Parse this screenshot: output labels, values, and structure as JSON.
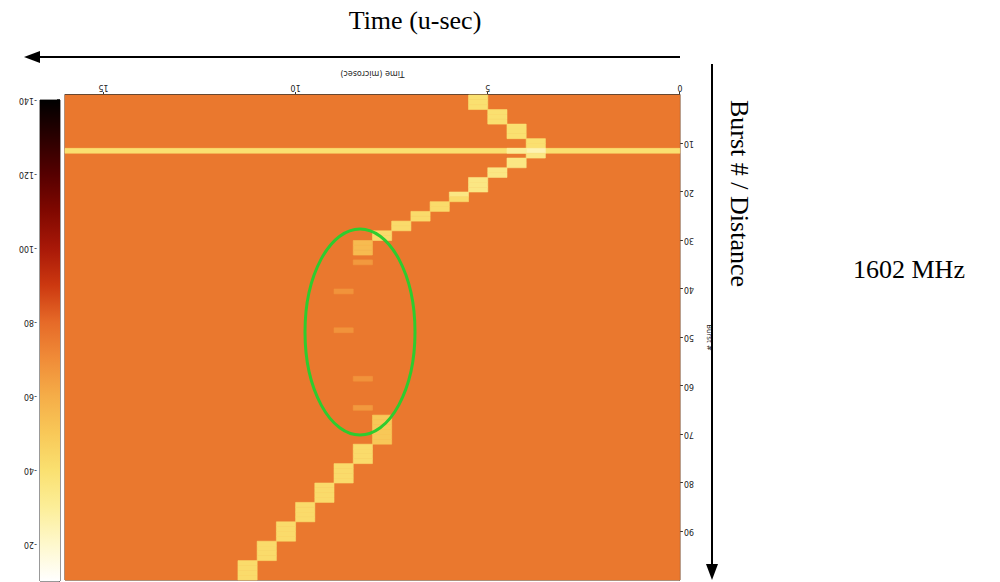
{
  "chart_data": {
    "type": "heatmap",
    "x_label": "Time (microsec)",
    "y_label": "Burst #",
    "xlim": [
      0,
      16
    ],
    "xticks": [
      0,
      5,
      10,
      15
    ],
    "ylim": [
      0,
      100
    ],
    "yticks": [
      10,
      20,
      30,
      40,
      50,
      60,
      70,
      80,
      90
    ],
    "colorbar": {
      "range": [
        -140,
        -10
      ],
      "ticks": [
        -140,
        -120,
        -100,
        -80,
        -60,
        -40,
        -20
      ]
    },
    "cell_size": {
      "x": 0.5,
      "y": 1
    },
    "background": -76,
    "bands": [
      {
        "y": 11,
        "value": -40
      }
    ],
    "cells": [
      [
        5.0,
        0,
        -40
      ],
      [
        5.0,
        1,
        -40
      ],
      [
        5.0,
        2,
        -40
      ],
      [
        4.5,
        3,
        -40
      ],
      [
        4.5,
        4,
        -40
      ],
      [
        4.5,
        5,
        -40
      ],
      [
        4.0,
        6,
        -40
      ],
      [
        4.0,
        7,
        -40
      ],
      [
        4.0,
        8,
        -40
      ],
      [
        3.5,
        9,
        -40
      ],
      [
        3.5,
        10,
        -40
      ],
      [
        3.5,
        11,
        -25
      ],
      [
        4.0,
        11,
        -30
      ],
      [
        3.5,
        12,
        -35
      ],
      [
        4.0,
        13,
        -35
      ],
      [
        4.0,
        14,
        -35
      ],
      [
        4.5,
        15,
        -35
      ],
      [
        4.5,
        16,
        -35
      ],
      [
        5.0,
        17,
        -35
      ],
      [
        5.0,
        18,
        -35
      ],
      [
        5.0,
        19,
        -35
      ],
      [
        5.5,
        20,
        -35
      ],
      [
        5.5,
        21,
        -42
      ],
      [
        6.0,
        22,
        -42
      ],
      [
        6.0,
        23,
        -42
      ],
      [
        6.5,
        24,
        -42
      ],
      [
        6.5,
        25,
        -42
      ],
      [
        7.0,
        26,
        -42
      ],
      [
        7.0,
        27,
        -42
      ],
      [
        7.5,
        28,
        -42
      ],
      [
        7.5,
        29,
        -42
      ],
      [
        8.0,
        30,
        -55
      ],
      [
        8.0,
        31,
        -55
      ],
      [
        8.0,
        32,
        -55
      ],
      [
        8.0,
        34,
        -66
      ],
      [
        8.5,
        40,
        -68
      ],
      [
        8.5,
        48,
        -68
      ],
      [
        8.0,
        58,
        -68
      ],
      [
        8.0,
        64,
        -66
      ],
      [
        7.5,
        66,
        -50
      ],
      [
        7.5,
        67,
        -50
      ],
      [
        7.5,
        68,
        -50
      ],
      [
        7.5,
        69,
        -50
      ],
      [
        7.5,
        70,
        -50
      ],
      [
        7.5,
        71,
        -50
      ],
      [
        8.0,
        72,
        -42
      ],
      [
        8.0,
        73,
        -42
      ],
      [
        8.0,
        74,
        -42
      ],
      [
        8.0,
        75,
        -42
      ],
      [
        8.5,
        76,
        -42
      ],
      [
        8.5,
        77,
        -42
      ],
      [
        8.5,
        78,
        -42
      ],
      [
        8.5,
        79,
        -42
      ],
      [
        9.0,
        80,
        -42
      ],
      [
        9.0,
        81,
        -42
      ],
      [
        9.0,
        82,
        -42
      ],
      [
        9.0,
        83,
        -42
      ],
      [
        9.5,
        84,
        -42
      ],
      [
        9.5,
        85,
        -42
      ],
      [
        9.5,
        86,
        -42
      ],
      [
        9.5,
        87,
        -42
      ],
      [
        10.0,
        88,
        -42
      ],
      [
        10.0,
        89,
        -42
      ],
      [
        10.0,
        90,
        -42
      ],
      [
        10.0,
        91,
        -42
      ],
      [
        10.5,
        92,
        -42
      ],
      [
        10.5,
        93,
        -42
      ],
      [
        10.5,
        94,
        -42
      ],
      [
        10.5,
        95,
        -42
      ],
      [
        11.0,
        96,
        -42
      ],
      [
        11.0,
        97,
        -42
      ],
      [
        11.0,
        98,
        -42
      ],
      [
        11.0,
        99,
        -42
      ]
    ],
    "annotations": {
      "time_arrow": "Time (u-sec)",
      "burst_arrow": "Burst # / Distance",
      "frequency": "1602 MHz"
    }
  }
}
